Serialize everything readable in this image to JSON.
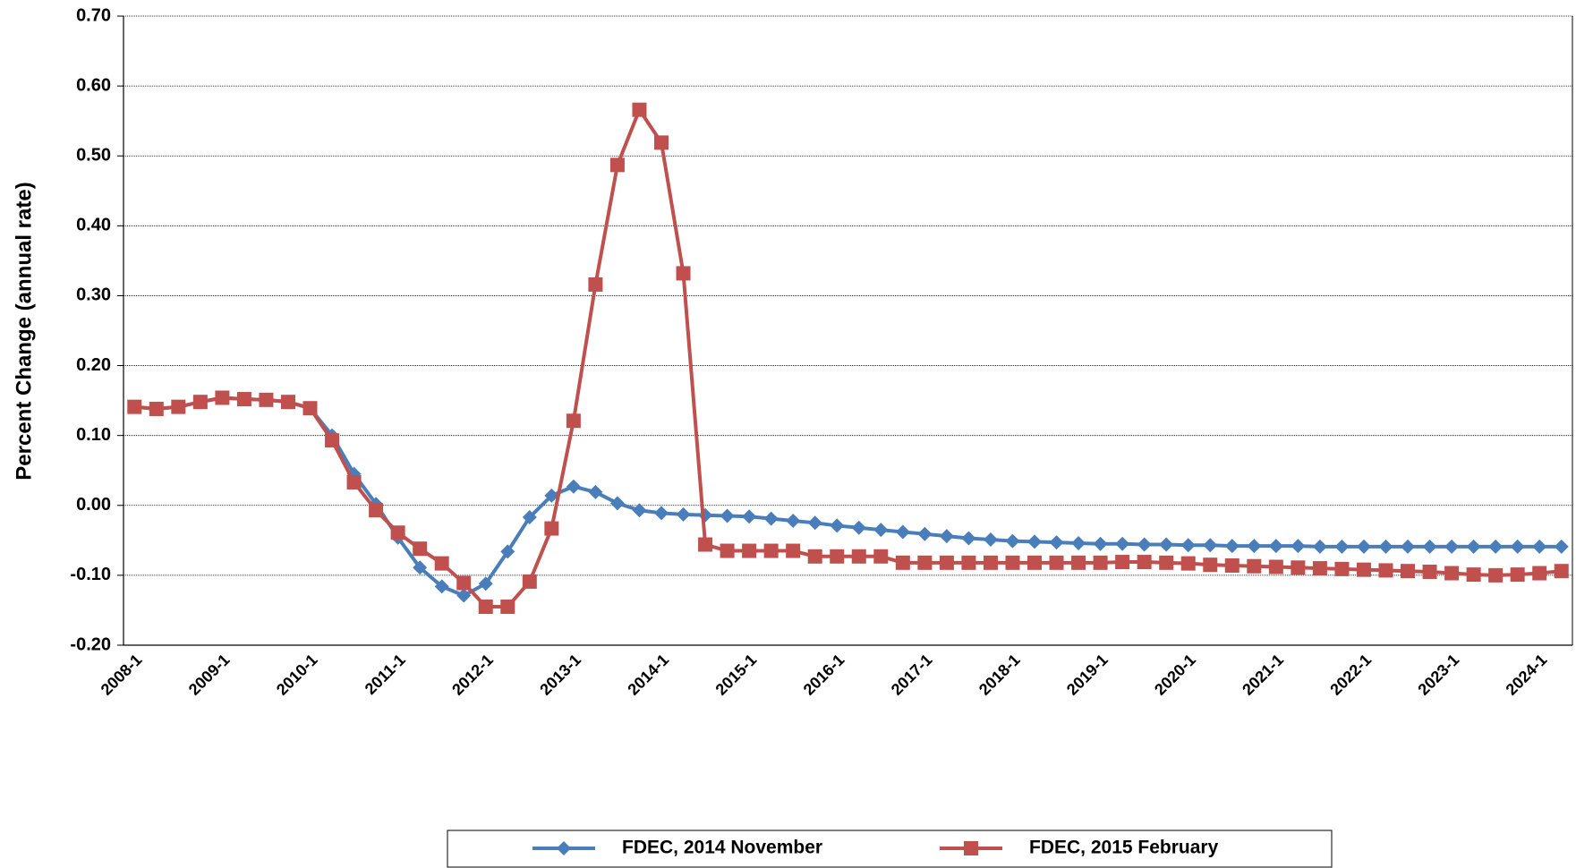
{
  "chart_data": {
    "type": "line",
    "y_label": "Percent Change (annual rate)",
    "categories": [
      "2008-1",
      null,
      null,
      null,
      "2009-1",
      null,
      null,
      null,
      "2010-1",
      null,
      null,
      null,
      "2011-1",
      null,
      null,
      null,
      "2012-1",
      null,
      null,
      null,
      "2013-1",
      null,
      null,
      null,
      "2014-1",
      null,
      null,
      null,
      "2015-1",
      null,
      null,
      null,
      "2016-1",
      null,
      null,
      null,
      "2017-1",
      null,
      null,
      null,
      "2018-1",
      null,
      null,
      null,
      "2019-1",
      null,
      null,
      null,
      "2020-1",
      null,
      null,
      null,
      "2021-1",
      null,
      null,
      null,
      "2022-1",
      null,
      null,
      null,
      "2023-1",
      null,
      null,
      null,
      "2024-1",
      null
    ],
    "series": [
      {
        "name": "FDEC, 2014 November",
        "color": "#4a7ebb",
        "marker": "diamond",
        "values": [
          0.141,
          0.138,
          0.141,
          0.148,
          0.154,
          0.152,
          0.151,
          0.148,
          0.139,
          0.1,
          0.045,
          0.002,
          -0.046,
          -0.089,
          -0.116,
          -0.129,
          -0.112,
          -0.066,
          -0.017,
          0.014,
          0.027,
          0.019,
          0.003,
          -0.007,
          -0.011,
          -0.013,
          -0.014,
          -0.015,
          -0.016,
          -0.019,
          -0.022,
          -0.025,
          -0.029,
          -0.032,
          -0.035,
          -0.038,
          -0.041,
          -0.044,
          -0.047,
          -0.049,
          -0.051,
          -0.052,
          -0.053,
          -0.054,
          -0.055,
          -0.055,
          -0.056,
          -0.056,
          -0.057,
          -0.057,
          -0.058,
          -0.058,
          -0.058,
          -0.058,
          -0.059,
          -0.059,
          -0.059,
          -0.059,
          -0.059,
          -0.059,
          -0.059,
          -0.059,
          -0.059,
          -0.059,
          -0.059,
          -0.059
        ]
      },
      {
        "name": "FDEC, 2015 February",
        "color": "#c0504d",
        "marker": "square",
        "values": [
          0.141,
          0.138,
          0.141,
          0.148,
          0.154,
          0.152,
          0.151,
          0.148,
          0.139,
          0.093,
          0.033,
          -0.007,
          -0.039,
          -0.062,
          -0.083,
          -0.111,
          -0.145,
          -0.145,
          -0.109,
          -0.033,
          0.121,
          0.316,
          0.487,
          0.566,
          0.519,
          0.332,
          -0.056,
          -0.065,
          -0.065,
          -0.065,
          -0.065,
          -0.073,
          -0.073,
          -0.073,
          -0.073,
          -0.082,
          -0.082,
          -0.082,
          -0.082,
          -0.082,
          -0.082,
          -0.082,
          -0.082,
          -0.082,
          -0.082,
          -0.081,
          -0.081,
          -0.082,
          -0.083,
          -0.085,
          -0.086,
          -0.087,
          -0.088,
          -0.089,
          -0.09,
          -0.091,
          -0.092,
          -0.093,
          -0.094,
          -0.095,
          -0.097,
          -0.099,
          -0.1,
          -0.099,
          -0.097,
          -0.094
        ]
      }
    ],
    "ylim": [
      -0.2,
      0.7
    ],
    "yticks": [
      {
        "value": -0.2,
        "label": "-0.20"
      },
      {
        "value": -0.1,
        "label": "-0.10"
      },
      {
        "value": 0,
        "label": "0.00"
      },
      {
        "value": 0.1,
        "label": "0.10"
      },
      {
        "value": 0.2,
        "label": "0.20"
      },
      {
        "value": 0.3,
        "label": "0.30"
      },
      {
        "value": 0.4,
        "label": "0.40"
      },
      {
        "value": 0.5,
        "label": "0.50"
      },
      {
        "value": 0.6,
        "label": "0.60"
      },
      {
        "value": 0.7,
        "label": "0.70"
      }
    ],
    "grid": true,
    "legend": "bottom"
  }
}
